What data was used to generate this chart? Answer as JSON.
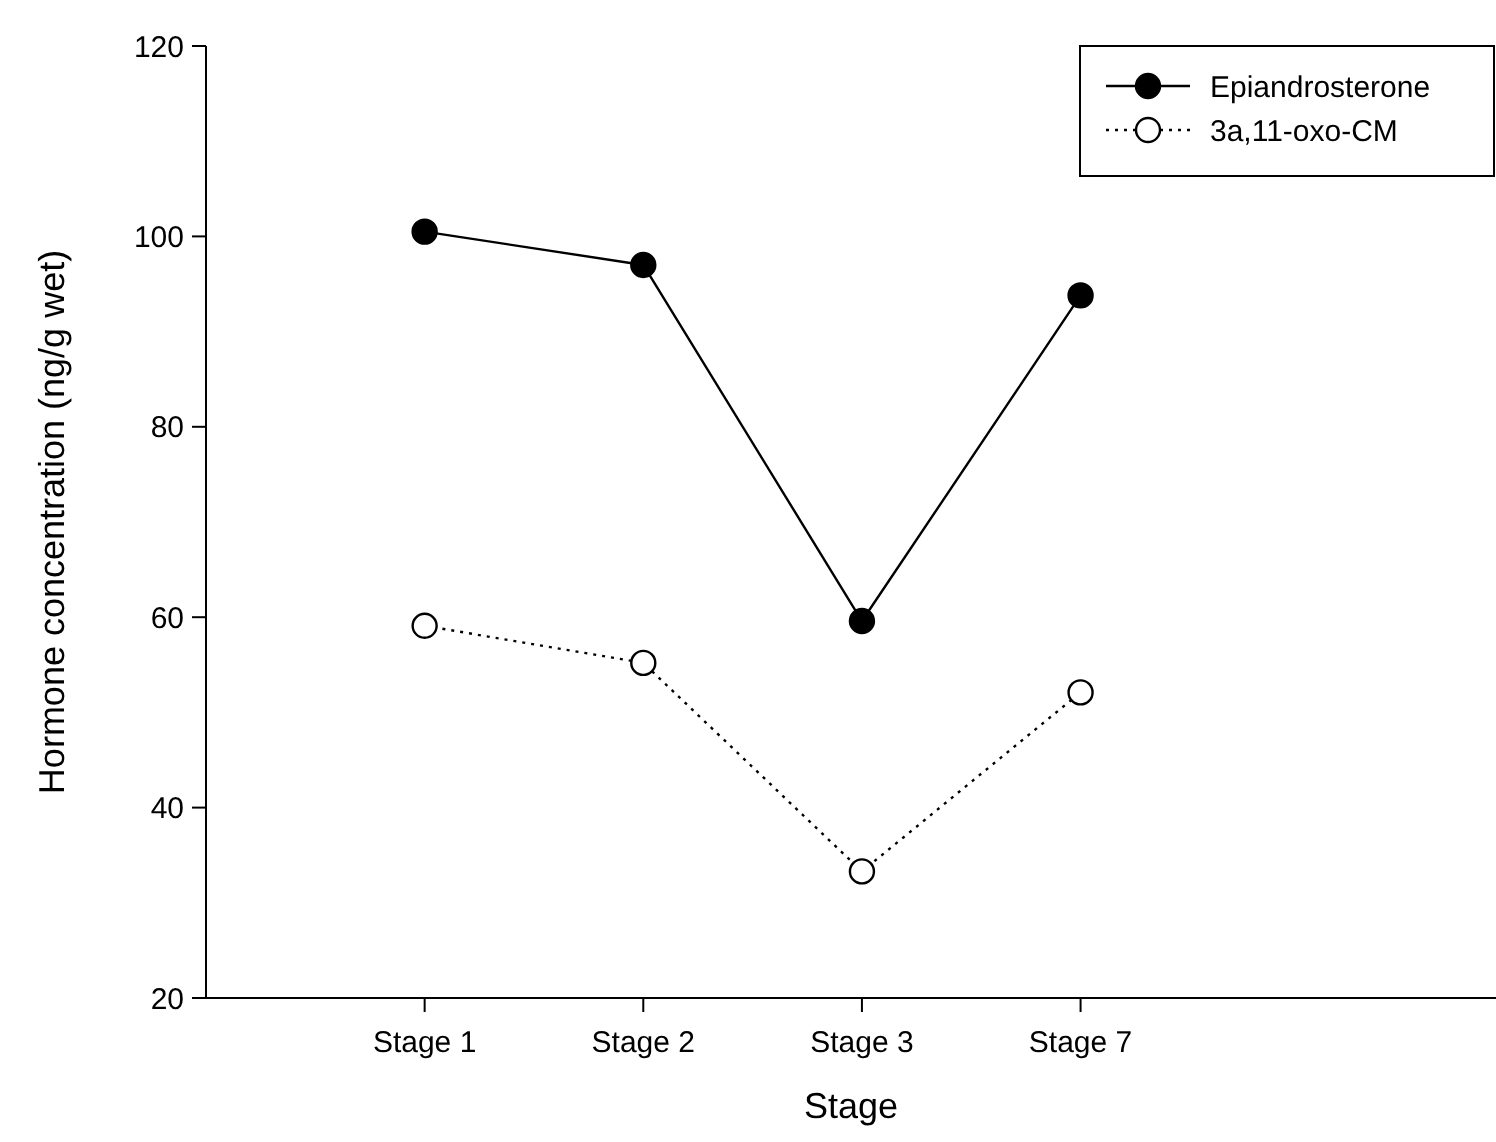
{
  "chart_data": {
    "type": "line",
    "xlabel": "Stage",
    "ylabel": "Hormone concentration (ng/g wet)",
    "categories": [
      "Stage 1",
      "Stage 2",
      "Stage 3",
      "Stage 7"
    ],
    "series": [
      {
        "name": "Epiandrosterone",
        "color": "#000000",
        "values": [
          100.5,
          97,
          59.6,
          93.8
        ],
        "marker": "circle",
        "line_style": "solid"
      },
      {
        "name": "3a,11-oxo-CM",
        "color": "#000000",
        "values": [
          59.1,
          55.2,
          33.3,
          52.1
        ],
        "marker": "circle",
        "line_style": "dotted"
      }
    ],
    "ylim": [
      20,
      120
    ],
    "yticks": [
      20,
      40,
      60,
      80,
      100,
      120
    ],
    "grid": false,
    "legend": "top right"
  }
}
